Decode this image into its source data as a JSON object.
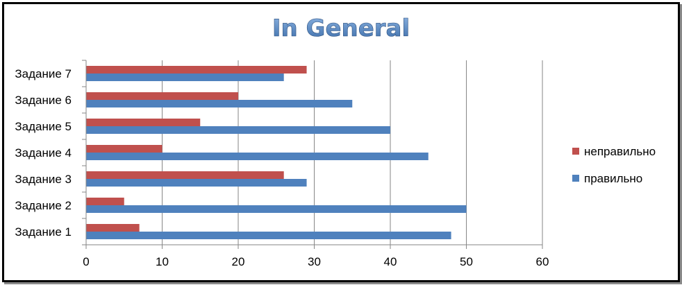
{
  "chart_data": {
    "type": "bar",
    "orientation": "horizontal",
    "title": "In General",
    "categories": [
      "Задание 1",
      "Задание 2",
      "Задание 3",
      "Задание 4",
      "Задание 5",
      "Задание 6",
      "Задание 7"
    ],
    "series": [
      {
        "name": "правильно",
        "color": "#4F81BD",
        "values": [
          48,
          50,
          29,
          45,
          40,
          35,
          26
        ]
      },
      {
        "name": "неправильно",
        "color": "#C0504D",
        "values": [
          7,
          5,
          26,
          10,
          15,
          20,
          29
        ]
      }
    ],
    "xlim": [
      0,
      60
    ],
    "xticks": [
      0,
      10,
      20,
      30,
      40,
      50,
      60
    ],
    "grid": "vertical",
    "legend_position": "right",
    "legend_order": [
      "неправильно",
      "правильно"
    ],
    "title_color": "#4F81BD"
  }
}
